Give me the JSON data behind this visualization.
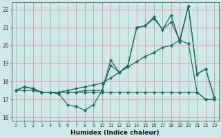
{
  "title": "",
  "xlabel": "Humidex (Indice chaleur)",
  "bg_color": "#ceeae8",
  "grid_color": "#c0a0a0",
  "line_color": "#1a6b5a",
  "xlim": [
    -0.5,
    23.5
  ],
  "ylim": [
    15.8,
    22.4
  ],
  "xticks": [
    0,
    1,
    2,
    3,
    4,
    5,
    6,
    7,
    8,
    9,
    10,
    11,
    12,
    13,
    14,
    15,
    16,
    17,
    18,
    19,
    20,
    21,
    22,
    23
  ],
  "yticks": [
    16,
    17,
    18,
    19,
    20,
    21,
    22
  ],
  "series": {
    "volatile_top": [
      17.5,
      17.7,
      17.6,
      17.4,
      17.4,
      17.4,
      17.4,
      17.4,
      17.5,
      17.5,
      17.5,
      19.2,
      18.5,
      18.9,
      21.0,
      21.1,
      21.6,
      20.9,
      21.7,
      20.2,
      22.2,
      18.4,
      18.7,
      17.1
    ],
    "diagonal": [
      17.5,
      17.7,
      17.6,
      17.4,
      17.4,
      17.4,
      17.5,
      17.6,
      17.7,
      17.8,
      17.9,
      18.2,
      18.5,
      18.8,
      19.1,
      19.4,
      19.6,
      19.9,
      20.0,
      20.3,
      20.1,
      17.4,
      17.0,
      17.0
    ],
    "flat": [
      17.5,
      17.5,
      17.5,
      17.4,
      17.4,
      17.4,
      17.4,
      17.4,
      17.4,
      17.4,
      17.4,
      17.4,
      17.4,
      17.4,
      17.4,
      17.4,
      17.4,
      17.4,
      17.4,
      17.4,
      17.4,
      17.4,
      17.0,
      17.0
    ],
    "dip": [
      17.5,
      17.7,
      17.6,
      17.4,
      17.4,
      17.3,
      16.7,
      16.6,
      16.4,
      16.7,
      17.5,
      18.9,
      18.5,
      18.9,
      21.0,
      21.1,
      21.5,
      20.9,
      21.3,
      20.3,
      22.2,
      18.4,
      18.7,
      17.1
    ]
  },
  "marker": "D",
  "marker_size": 2.2,
  "linewidth": 0.9
}
